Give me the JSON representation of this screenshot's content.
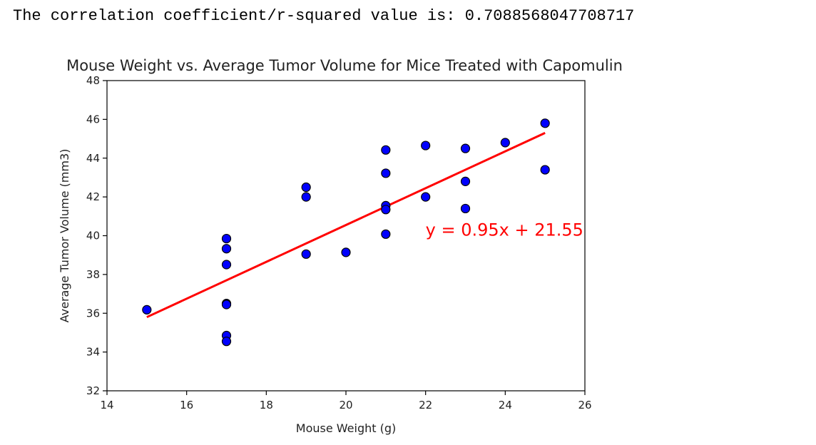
{
  "output": {
    "text": "The correlation coefficient/r-squared value is: 0.7088568047708717"
  },
  "colors": {
    "points": "#0000ff",
    "point_edge": "#000000",
    "regression_line": "#ff0000",
    "annotation": "#ff0000"
  },
  "chart_data": {
    "type": "scatter",
    "title": "Mouse Weight vs. Average Tumor Volume for Mice Treated with Capomulin",
    "xlabel": "Mouse Weight (g)",
    "ylabel": "Average Tumor Volume (mm3)",
    "xlim": [
      14,
      26
    ],
    "ylim": [
      32,
      48
    ],
    "xticks": [
      14,
      16,
      18,
      20,
      22,
      24,
      26
    ],
    "yticks": [
      32,
      34,
      36,
      38,
      40,
      42,
      44,
      46,
      48
    ],
    "grid": false,
    "points": [
      {
        "x": 15,
        "y": 36.18
      },
      {
        "x": 17,
        "y": 39.85
      },
      {
        "x": 17,
        "y": 39.33
      },
      {
        "x": 17,
        "y": 38.51
      },
      {
        "x": 17,
        "y": 36.5
      },
      {
        "x": 17,
        "y": 36.45
      },
      {
        "x": 17,
        "y": 34.85
      },
      {
        "x": 17,
        "y": 34.55
      },
      {
        "x": 19,
        "y": 42.5
      },
      {
        "x": 19,
        "y": 42.0
      },
      {
        "x": 19,
        "y": 39.05
      },
      {
        "x": 20,
        "y": 39.14
      },
      {
        "x": 21,
        "y": 44.42
      },
      {
        "x": 21,
        "y": 43.22
      },
      {
        "x": 21,
        "y": 41.55
      },
      {
        "x": 21,
        "y": 41.35
      },
      {
        "x": 21,
        "y": 40.08
      },
      {
        "x": 22,
        "y": 44.65
      },
      {
        "x": 22,
        "y": 42.0
      },
      {
        "x": 23,
        "y": 44.5
      },
      {
        "x": 23,
        "y": 42.8
      },
      {
        "x": 23,
        "y": 41.4
      },
      {
        "x": 24,
        "y": 44.8
      },
      {
        "x": 25,
        "y": 45.8
      },
      {
        "x": 25,
        "y": 43.4
      }
    ],
    "regression": {
      "slope": 0.95,
      "intercept": 21.55,
      "x_range": [
        15,
        25
      ],
      "label": "y = 0.95x + 21.55",
      "label_position": {
        "x": 22,
        "y": 40
      }
    }
  }
}
